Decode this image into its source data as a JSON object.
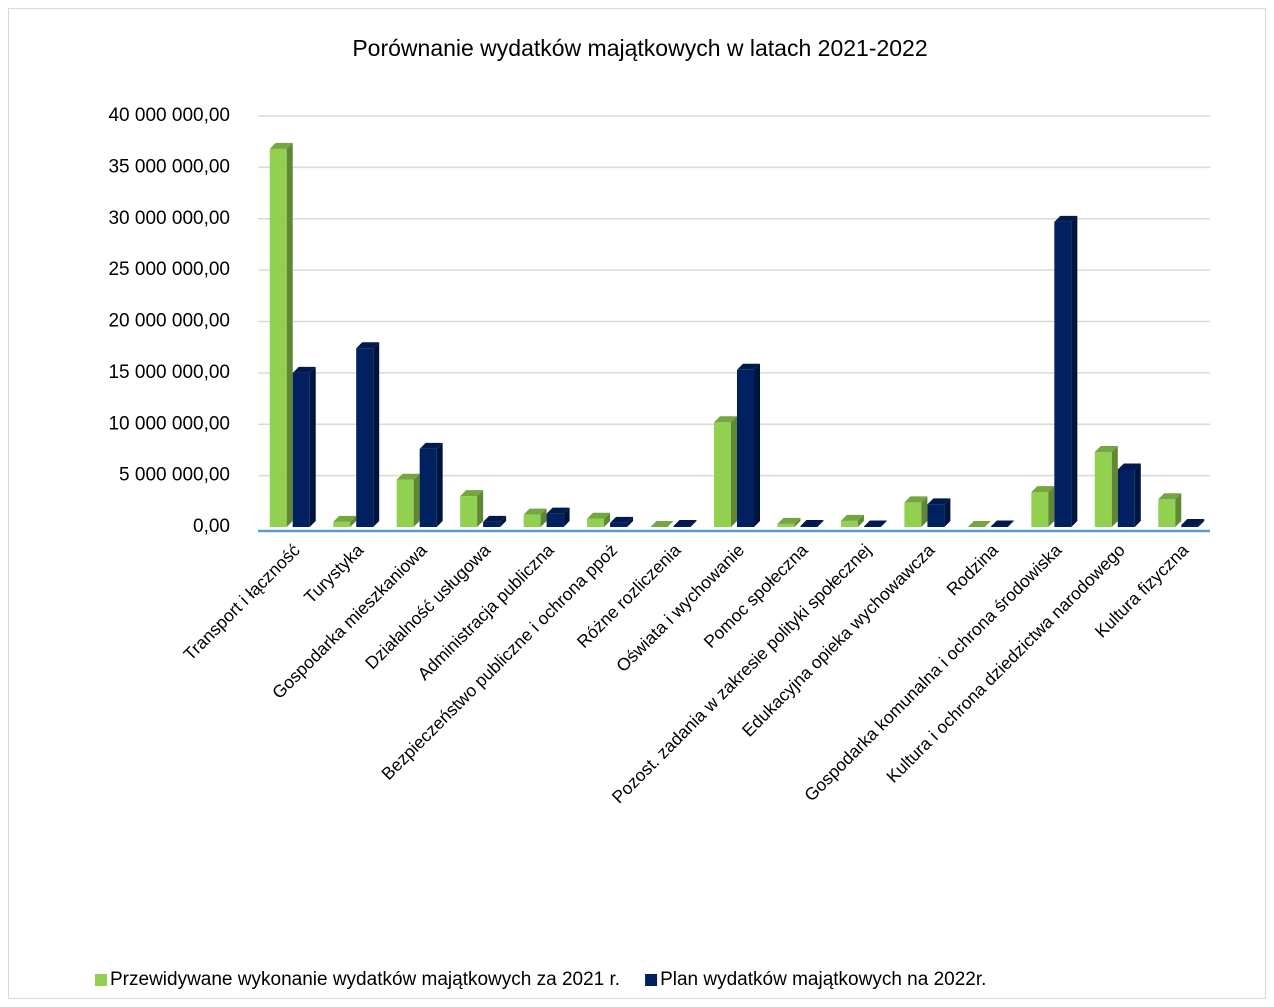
{
  "chart_data": {
    "type": "bar",
    "title": "Porównanie wydatków majątkowych w latach 2021-2022",
    "categories": [
      "Transport i łączność",
      "Turystyka",
      "Gospodarka mieszkaniowa",
      "Działalność usługowa",
      "Administracja publiczna",
      "Bezpieczeństwo publiczne i ochrona ppoż",
      "Różne rozliczenia",
      "Oświata i wychowanie",
      "Pomoc społeczna",
      "Pozost. zadania w zakresie polityki społecznej",
      "Edukacyjna opieka wychowawcza",
      "Rodzina",
      "Gospodarka komunalna i ochrona środowiska",
      "Kultura i ochrona dziedzictwa narodowego",
      "Kultura fizyczna"
    ],
    "series": [
      {
        "name": "Przewidywane wykonanie wydatków majątkowych za 2021 r.",
        "color": "#92d050",
        "values": [
          36800000,
          500000,
          4600000,
          3000000,
          1200000,
          800000,
          0,
          10200000,
          300000,
          600000,
          2400000,
          0,
          3400000,
          7300000,
          2700000
        ]
      },
      {
        "name": "Plan wydatków majątkowych na 2022r.",
        "color": "#002060",
        "values": [
          15000000,
          17400000,
          7600000,
          500000,
          1300000,
          400000,
          100000,
          15300000,
          100000,
          50000,
          2200000,
          50000,
          29700000,
          5600000,
          200000
        ]
      }
    ],
    "ylim": [
      0,
      40000000
    ],
    "yticks": [
      {
        "value": 0,
        "label": "0,00"
      },
      {
        "value": 5000000,
        "label": "5 000 000,00"
      },
      {
        "value": 10000000,
        "label": "10 000 000,00"
      },
      {
        "value": 15000000,
        "label": "15 000 000,00"
      },
      {
        "value": 20000000,
        "label": "20 000 000,00"
      },
      {
        "value": 25000000,
        "label": "25 000 000,00"
      },
      {
        "value": 30000000,
        "label": "30 000 000,00"
      },
      {
        "value": 35000000,
        "label": "35 000 000,00"
      },
      {
        "value": 40000000,
        "label": "40 000 000,00"
      }
    ],
    "grid": true,
    "legend": "bottom"
  }
}
